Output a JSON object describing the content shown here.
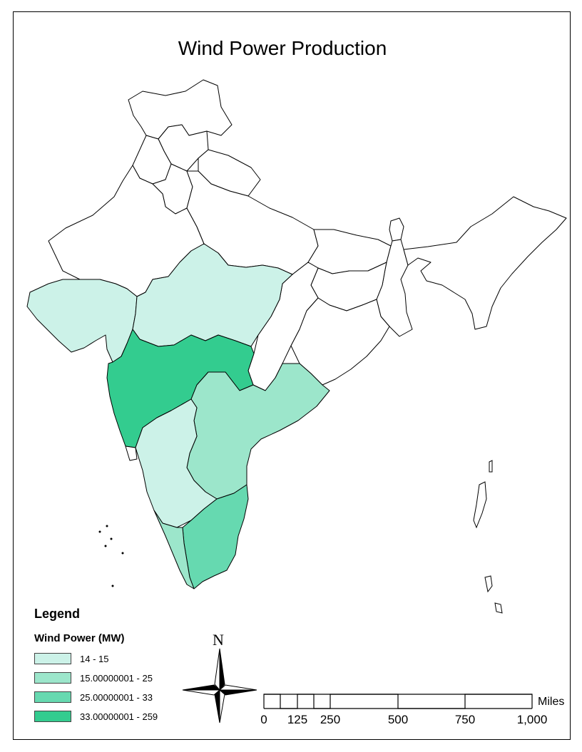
{
  "map": {
    "title": "Wind Power Production",
    "colors": {
      "outline": "#000000",
      "no_data": "#ffffff",
      "class1": "#ccf2e8",
      "class2": "#9ce6cb",
      "class3": "#66d9b0",
      "class4": "#33cc8f"
    },
    "regions": [
      {
        "name": "Gujarat",
        "class": "class1"
      },
      {
        "name": "Madhya Pradesh",
        "class": "class1"
      },
      {
        "name": "Maharashtra",
        "class": "class4"
      },
      {
        "name": "Karnataka",
        "class": "class1"
      },
      {
        "name": "Andhra Pradesh",
        "class": "class2"
      },
      {
        "name": "Tamil Nadu",
        "class": "class3"
      },
      {
        "name": "Kerala",
        "class": "class2"
      }
    ]
  },
  "legend": {
    "title": "Legend",
    "field": "Wind Power (MW)",
    "items": [
      {
        "label": "14 - 15",
        "color": "#ccf2e8"
      },
      {
        "label": "15.00000001 - 25",
        "color": "#9ce6cb"
      },
      {
        "label": "25.00000001 - 33",
        "color": "#66d9b0"
      },
      {
        "label": "33.00000001 - 259",
        "color": "#33cc8f"
      }
    ]
  },
  "north_arrow": {
    "label": "N",
    "icon": "compass-rose-icon"
  },
  "scale_bar": {
    "unit": "Miles",
    "ticks": [
      "0",
      "125",
      "250",
      "500",
      "750",
      "1,000"
    ]
  }
}
